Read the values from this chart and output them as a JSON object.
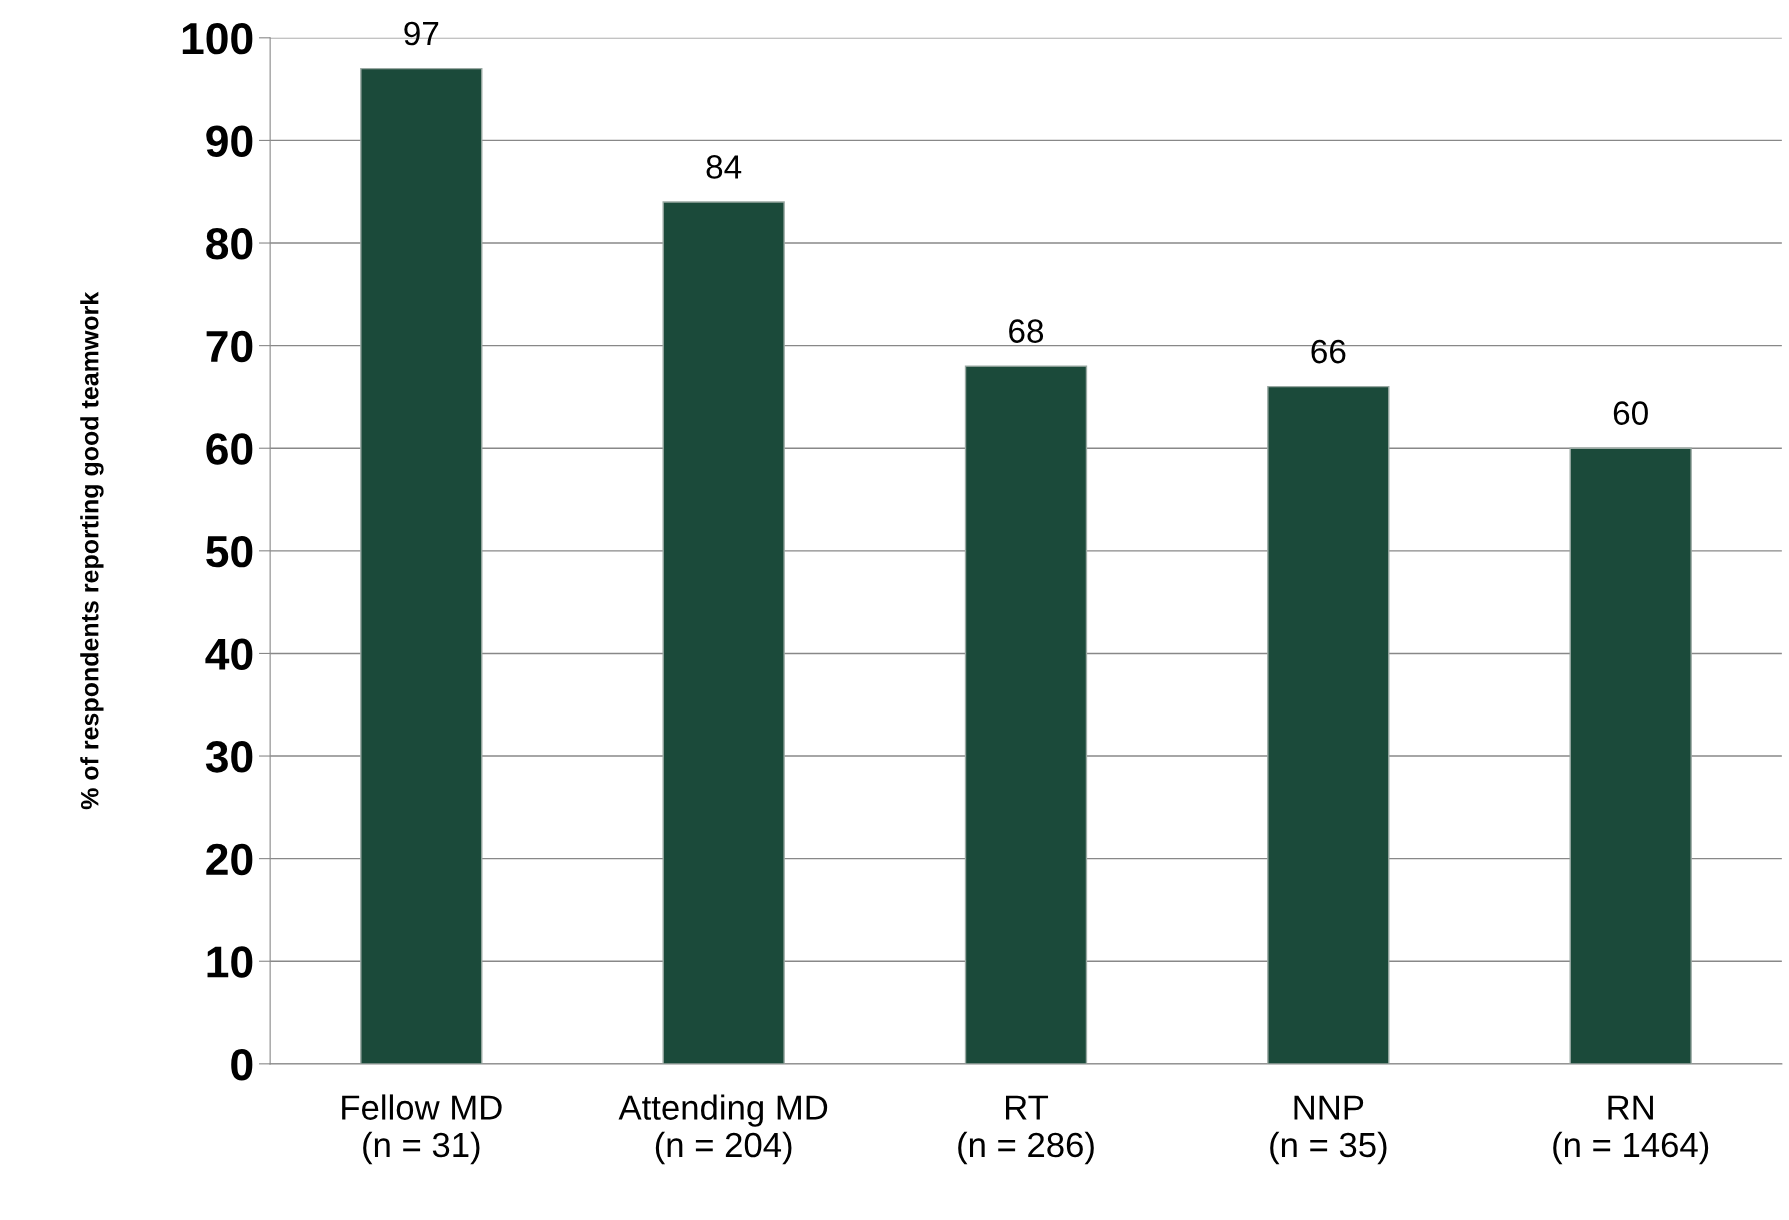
{
  "chart_data": {
    "type": "bar",
    "ylabel": "% of respondents reporting good teamwork",
    "categories": [
      "Fellow MD\n(n = 31)",
      "Attending MD\n(n = 204)",
      "RT\n(n = 286)",
      "NNP\n(n = 35)",
      "RN\n(n = 1464)"
    ],
    "values": [
      97,
      84,
      68,
      66,
      60
    ],
    "color": "#1b4a3a",
    "data_labels": true,
    "ylim": [
      0,
      100
    ],
    "yticks": [
      0,
      10,
      20,
      30,
      40,
      50,
      60,
      70,
      80,
      90,
      100
    ],
    "grid": "y"
  }
}
